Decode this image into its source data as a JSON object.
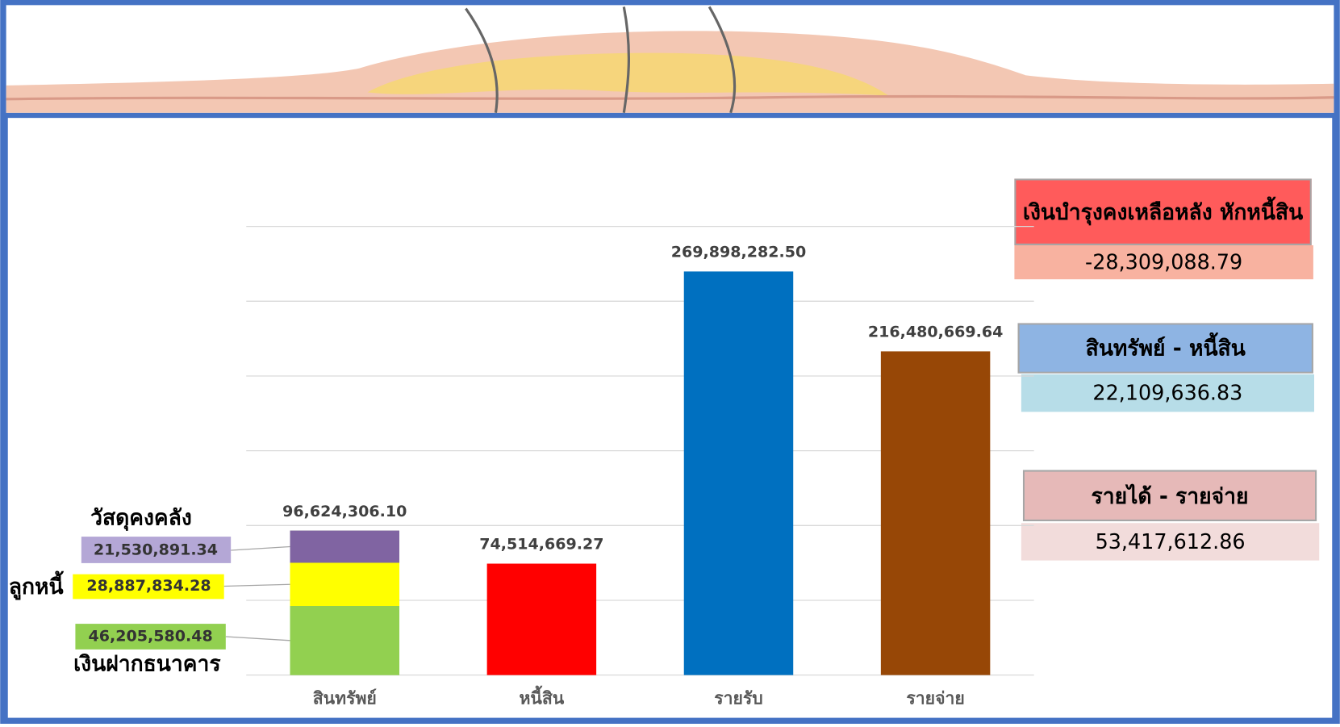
{
  "chart_data": {
    "type": "bar",
    "categories": [
      "สินทรัพย์",
      "หนี้สิน",
      "รายรับ",
      "รายจ่าย"
    ],
    "values": [
      96624306.1,
      74514669.27,
      269898282.5,
      216480669.64
    ],
    "value_labels": [
      "96,624,306.10",
      "74,514,669.27",
      "269,898,282.50",
      "216,480,669.64"
    ],
    "colors": [
      "#92d050",
      "#ff0000",
      "#0070c0",
      "#974706"
    ],
    "segments": [
      {
        "name": "เงินฝากธนาคาร",
        "color": "#92d050",
        "value": 46205580.48,
        "value_label": "46,205,580.48"
      },
      {
        "name": "ลูกหนี้",
        "color": "#ffff00",
        "value": 28887834.28,
        "value_label": "28,887,834.28"
      },
      {
        "name": "วัสดุคงคลัง",
        "color": "#8064a2",
        "value": 21530891.34,
        "value_label": "21,530,891.34"
      }
    ],
    "ylim": [
      0,
      300000000
    ],
    "yticks": [
      0,
      50000000,
      100000000,
      150000000,
      200000000,
      250000000,
      300000000
    ],
    "grid": true
  },
  "info_boxes": [
    {
      "title": "เงินบำรุงคงเหลือหลัง หักหนี้สิน",
      "value": "-28,309,088.79"
    },
    {
      "title": "สินทรัพย์ - หนี้สิน",
      "value": "22,109,636.83"
    },
    {
      "title": "รายได้ - รายจ่าย",
      "value": "53,417,612.86"
    }
  ]
}
